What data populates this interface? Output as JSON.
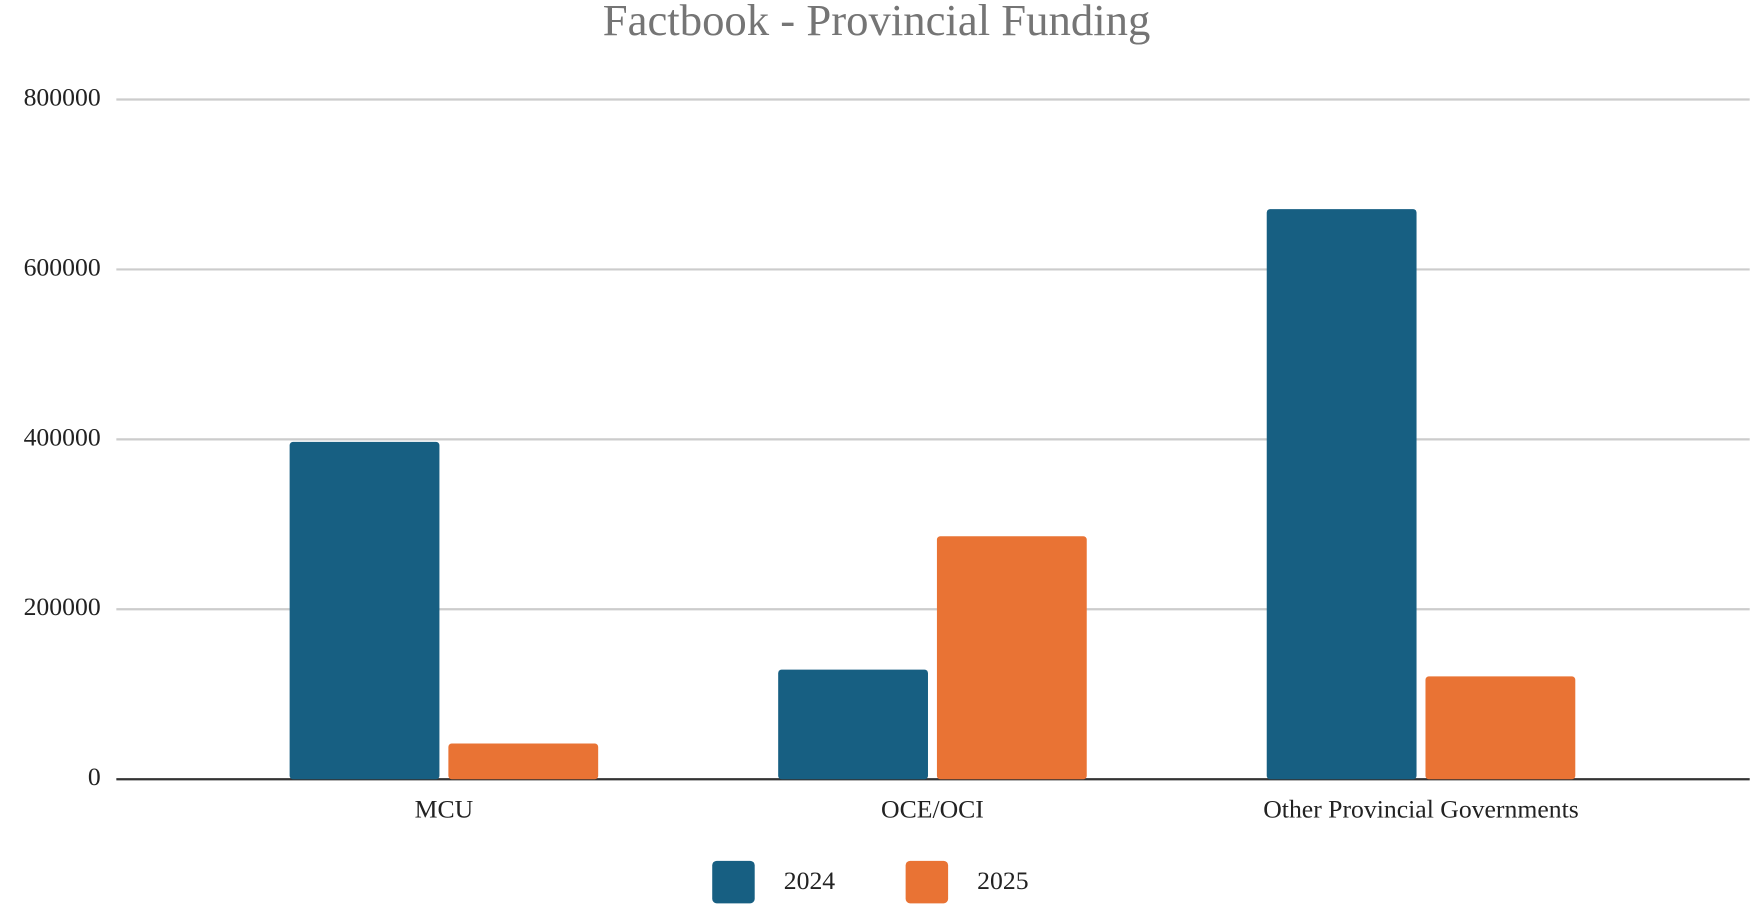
{
  "chart_data": {
    "type": "bar",
    "title": "Factbook - Provincial Funding",
    "categories": [
      "MCU",
      "OCE/OCI",
      "Other Provincial Governments"
    ],
    "series": [
      {
        "name": "2024",
        "color": "#175f82",
        "values": [
          397000,
          129000,
          671000
        ]
      },
      {
        "name": "2025",
        "color": "#e97334",
        "values": [
          42000,
          286000,
          121000
        ]
      }
    ],
    "ylim": [
      0,
      800000
    ],
    "yticks": [
      0,
      200000,
      400000,
      600000,
      800000
    ],
    "grid": true,
    "legend": "bottom"
  }
}
